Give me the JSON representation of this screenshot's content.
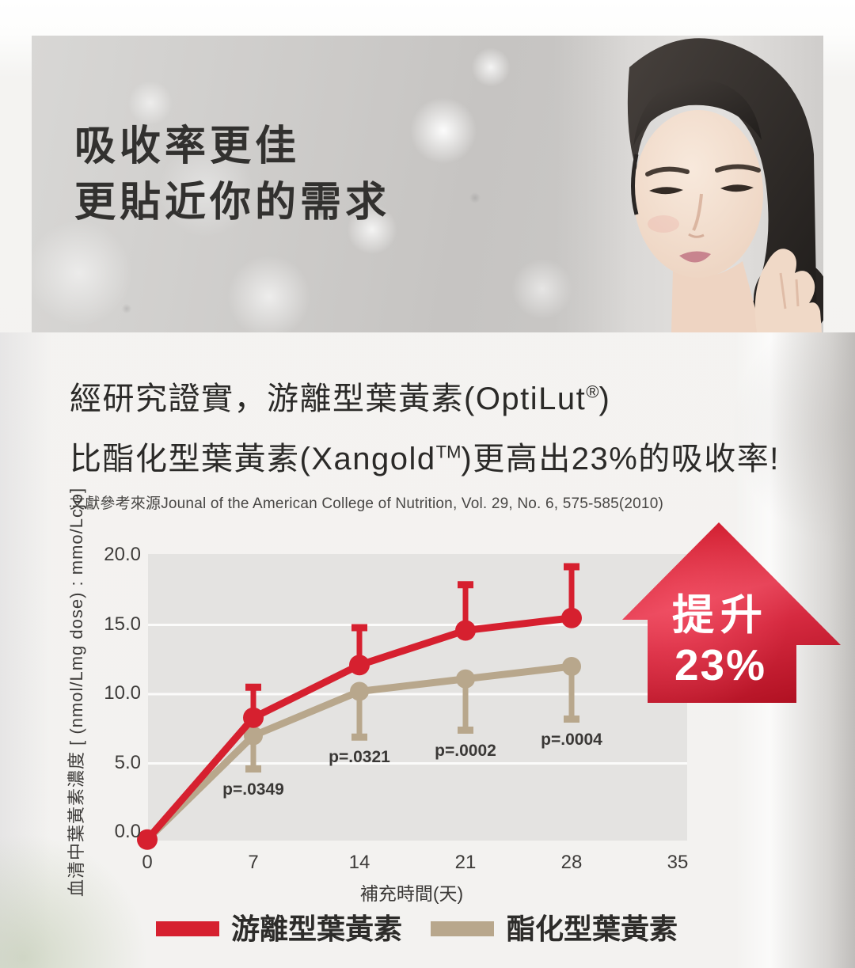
{
  "banner": {
    "headline_line1": "吸收率更佳",
    "headline_line2": "更貼近你的需求"
  },
  "statement": {
    "line1_pre": "經研究證實，游離型葉黃素(OptiLut",
    "line1_sup": "®",
    "line1_post": ")",
    "line2_pre": "比酯化型葉黃素(Xangold",
    "line2_sup": "TM",
    "line2_post": ")更高出23%的吸收率!",
    "citation": "文獻參考來源Jounal of the American College of Nutrition, Vol. 29, No. 6, 575-585(2010)"
  },
  "badge": {
    "line1": "提升",
    "line2": "23%"
  },
  "chart_data": {
    "type": "line",
    "x": [
      0,
      7,
      14,
      21,
      28
    ],
    "series": [
      {
        "name": "游離型葉黃素",
        "color": "#d6202f",
        "values": [
          -0.5,
          8.3,
          12.1,
          14.6,
          15.5
        ],
        "error_high": [
          null,
          10.5,
          14.8,
          17.9,
          19.2
        ]
      },
      {
        "name": "酯化型葉黃素",
        "color": "#b8a78c",
        "values": [
          -0.5,
          7.0,
          10.2,
          11.1,
          12.0
        ],
        "error_low": [
          null,
          4.6,
          6.9,
          7.4,
          8.2
        ]
      }
    ],
    "p_values": [
      {
        "x": 7,
        "label": "p=.0349"
      },
      {
        "x": 14,
        "label": "p=.0321"
      },
      {
        "x": 21,
        "label": "p=.0002"
      },
      {
        "x": 28,
        "label": "p=.0004"
      }
    ],
    "xlabel": "補充時間(天)",
    "ylabel": "血清中葉黃素濃度 [ (nmol/Lmg dose) : mmo/Lcjo]",
    "x_ticks": [
      0,
      7,
      14,
      21,
      28,
      35
    ],
    "y_ticks": [
      "20.0",
      "15.0",
      "10.0",
      "5.0",
      "0.0"
    ],
    "xlim": [
      0,
      35
    ],
    "ylim": [
      0,
      20
    ],
    "grid": "horizontal",
    "plot_bg": "#e4e3e1",
    "legend_position": "bottom"
  }
}
